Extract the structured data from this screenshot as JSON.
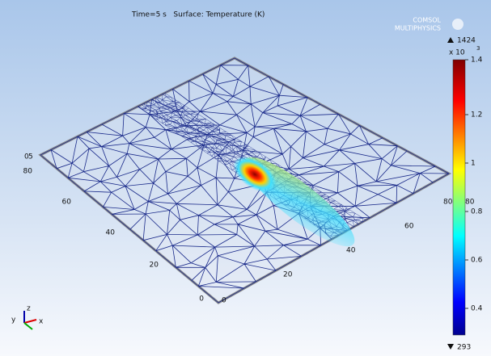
{
  "header": {
    "title": "Time=5 s   Surface: Temperature (K)",
    "logo": [
      "COMSOL",
      "MULTIPHYSICS"
    ]
  },
  "colorbar": {
    "max_label": "1424",
    "min_label": "293",
    "multiplier": "x 10",
    "exponent": "3",
    "ticks": [
      "1.4",
      "1.2",
      "1",
      "0.8",
      "0.6",
      "0.4"
    ]
  },
  "axes": {
    "left_ticks": [
      "80",
      "60",
      "40",
      "20",
      "0"
    ],
    "front_ticks": [
      "0",
      "20",
      "40",
      "60",
      "80"
    ],
    "z_ticks": [
      "0",
      "5"
    ],
    "side_tick": "80",
    "triad": [
      "y",
      "z",
      "x"
    ]
  }
}
